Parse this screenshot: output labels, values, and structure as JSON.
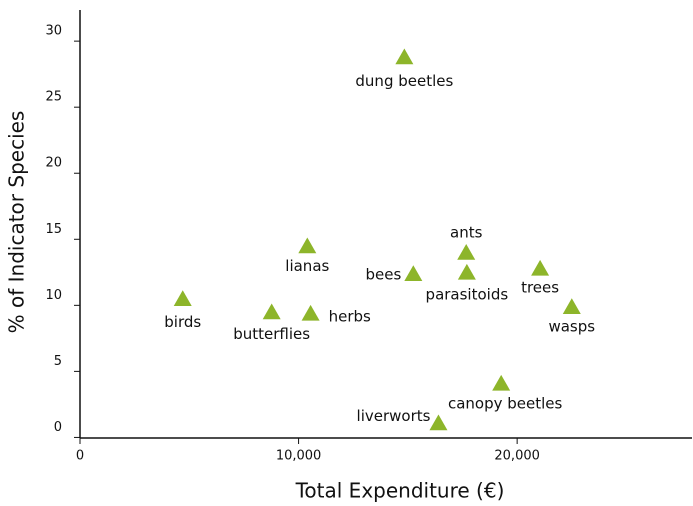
{
  "chart_data": {
    "type": "scatter",
    "x_label": "Total Expenditure (€)",
    "y_label": "% of Indicator Species",
    "labels": [
      "dung beetles",
      "ants",
      "lianas",
      "bees",
      "parasitoids",
      "trees",
      "wasps",
      "birds",
      "butterflies",
      "herbs",
      "canopy beetles",
      "liverworts"
    ],
    "x": [
      14840,
      17670,
      10400,
      15250,
      17700,
      21050,
      22500,
      4700,
      8770,
      10550,
      19270,
      16400
    ],
    "values": [
      28.0,
      13.2,
      13.7,
      11.6,
      11.7,
      12.0,
      9.1,
      9.7,
      8.7,
      8.6,
      3.3,
      0.3
    ],
    "color": "#8db52a",
    "xlim": [
      0,
      28000
    ],
    "xticks": [
      0,
      {
        "value": 10000,
        "label": "10,000"
      },
      {
        "value": 20000,
        "label": "20,000"
      }
    ],
    "ylim": [
      -0.8,
      31.6
    ],
    "yticks": [
      0,
      5,
      10,
      15,
      20,
      25,
      30
    ]
  }
}
